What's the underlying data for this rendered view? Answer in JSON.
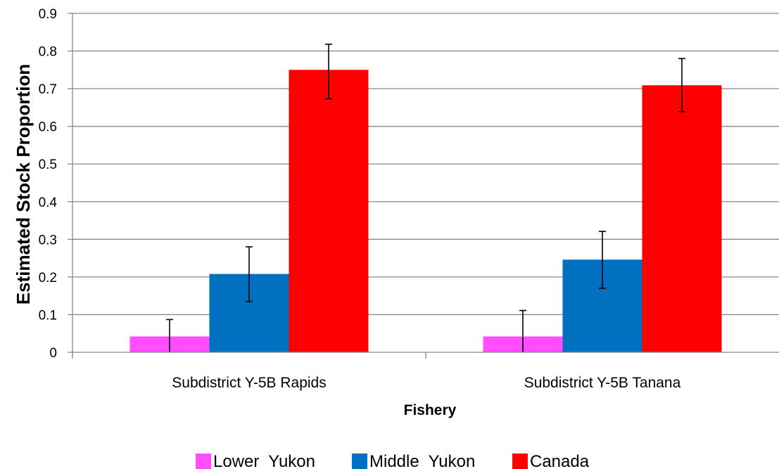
{
  "chart_data": {
    "type": "bar",
    "title": "",
    "xlabel": "Fishery",
    "ylabel": "Estimated Stock Proportion",
    "ylim": [
      0,
      0.9
    ],
    "yticks": [
      0,
      0.1,
      0.2,
      0.3,
      0.4,
      0.5,
      0.6,
      0.7,
      0.8,
      0.9
    ],
    "ytick_labels": [
      "0",
      "0.1",
      "0.2",
      "0.3",
      "0.4",
      "0.5",
      "0.6",
      "0.7",
      "0.8",
      "0.9"
    ],
    "grid": true,
    "legend_position": "bottom",
    "categories": [
      "Subdistrict Y-5B Rapids",
      "Subdistrict Y-5B Tanana"
    ],
    "series": [
      {
        "name": "Lower  Yukon",
        "color": "#ff4dff",
        "values": [
          0.042,
          0.042
        ],
        "lower": [
          0.0,
          0.0
        ],
        "upper": [
          0.087,
          0.111
        ]
      },
      {
        "name": "Middle  Yukon",
        "color": "#0070c0",
        "values": [
          0.208,
          0.246
        ],
        "lower": [
          0.135,
          0.17
        ],
        "upper": [
          0.28,
          0.321
        ]
      },
      {
        "name": "Canada",
        "color": "#ff0000",
        "values": [
          0.75,
          0.709
        ],
        "lower": [
          0.673,
          0.639
        ],
        "upper": [
          0.818,
          0.78
        ]
      }
    ]
  }
}
